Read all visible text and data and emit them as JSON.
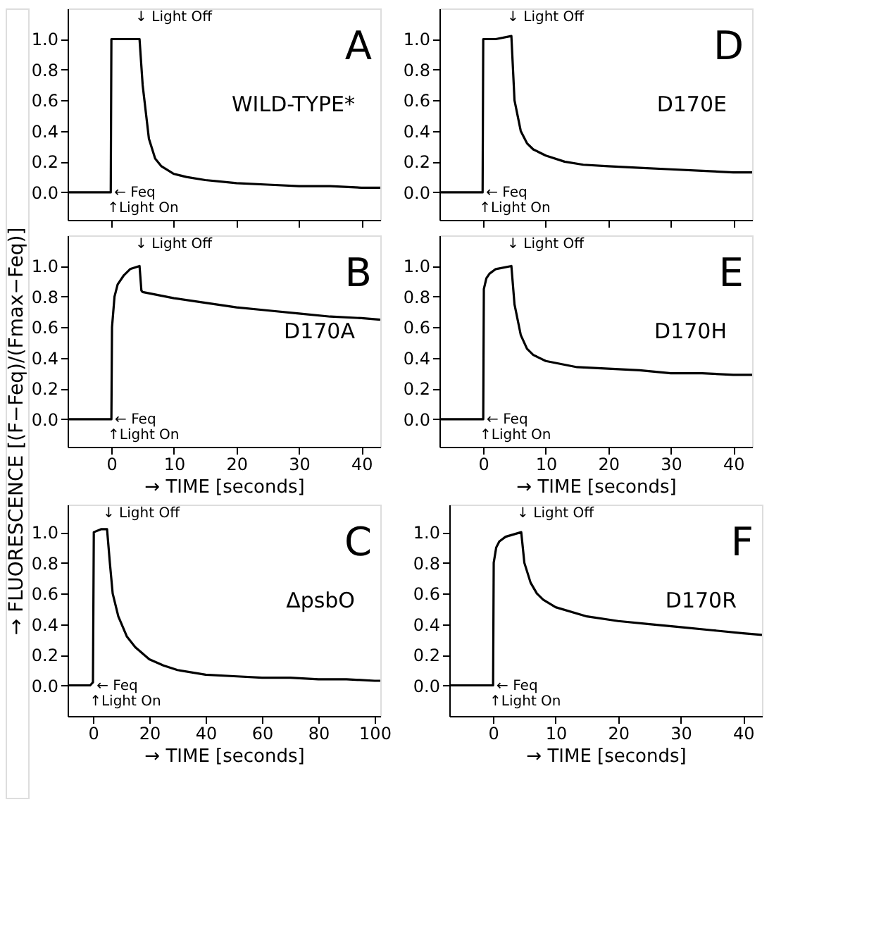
{
  "chart_data": [
    {
      "type": "line",
      "x": [
        -7,
        -3,
        -0.1,
        0,
        2,
        4.5,
        5,
        6,
        7,
        8,
        10,
        12,
        15,
        20,
        25,
        30,
        35,
        40,
        43
      ],
      "values": [
        0,
        0,
        0,
        1.0,
        1.0,
        1.0,
        0.7,
        0.35,
        0.22,
        0.17,
        0.12,
        0.1,
        0.08,
        0.06,
        0.05,
        0.04,
        0.04,
        0.03,
        0.03
      ],
      "color": "#000000",
      "xlim": [
        -7,
        43
      ],
      "ylim": [
        -0.18,
        1.2
      ],
      "xticks": [
        0,
        10,
        20,
        30,
        40
      ],
      "yticks": [
        {
          "value": 0,
          "label": "0.0"
        },
        {
          "value": 0.2,
          "label": "0.2"
        },
        {
          "value": 0.4,
          "label": "0.4"
        },
        {
          "value": 0.6,
          "label": "0.6"
        },
        {
          "value": 0.8,
          "label": "0.8"
        },
        {
          "value": 1,
          "label": "1.0"
        }
      ],
      "tick_labels": "y",
      "grid": false,
      "annotations": [
        "A",
        "WILD-TYPE*",
        "↓ Light Off",
        "← Feq",
        "↑Light On"
      ]
    },
    {
      "type": "line",
      "x": [
        -7,
        -3,
        -0.1,
        0,
        2,
        4.5,
        5,
        6,
        7,
        8,
        10,
        13,
        16,
        20,
        25,
        30,
        35,
        40,
        43
      ],
      "values": [
        0,
        0,
        0,
        1.0,
        1.0,
        1.02,
        0.6,
        0.4,
        0.32,
        0.28,
        0.24,
        0.2,
        0.18,
        0.17,
        0.16,
        0.15,
        0.14,
        0.13,
        0.13
      ],
      "color": "#000000",
      "xlim": [
        -7,
        43
      ],
      "ylim": [
        -0.18,
        1.2
      ],
      "xticks": [
        0,
        10,
        20,
        30,
        40
      ],
      "yticks": [
        {
          "value": 0,
          "label": "0.0"
        },
        {
          "value": 0.2,
          "label": "0.2"
        },
        {
          "value": 0.4,
          "label": "0.4"
        },
        {
          "value": 0.6,
          "label": "0.6"
        },
        {
          "value": 0.8,
          "label": "0.8"
        },
        {
          "value": 1,
          "label": "1.0"
        }
      ],
      "tick_labels": "y",
      "grid": false,
      "annotations": [
        "D",
        "D170E",
        "↓ Light Off",
        "← Feq",
        "↑Light On"
      ]
    },
    {
      "type": "line",
      "x": [
        -7,
        -3,
        0,
        0.1,
        0.5,
        1,
        2,
        3,
        4.5,
        4.8,
        5,
        10,
        15,
        20,
        25,
        30,
        35,
        40,
        43
      ],
      "values": [
        0,
        0,
        0,
        0.6,
        0.8,
        0.88,
        0.94,
        0.98,
        1.0,
        0.84,
        0.83,
        0.79,
        0.76,
        0.73,
        0.71,
        0.69,
        0.67,
        0.66,
        0.65
      ],
      "color": "#000000",
      "xlim": [
        -7,
        43
      ],
      "ylim": [
        -0.18,
        1.2
      ],
      "xticks": [
        0,
        10,
        20,
        30,
        40
      ],
      "yticks": [
        {
          "value": 0,
          "label": "0.0"
        },
        {
          "value": 0.2,
          "label": "0.2"
        },
        {
          "value": 0.4,
          "label": "0.4"
        },
        {
          "value": 0.6,
          "label": "0.6"
        },
        {
          "value": 0.8,
          "label": "0.8"
        },
        {
          "value": 1,
          "label": "1.0"
        }
      ],
      "grid": false,
      "xlabel": "→ TIME [seconds]",
      "ylabel": "→ FLUORESCENCE [(F−Feq)/(Fmax−Feq)]",
      "annotations": [
        "B",
        "D170A",
        "↓ Light Off",
        "← Feq",
        "↑Light On"
      ]
    },
    {
      "type": "line",
      "x": [
        -7,
        -3,
        0,
        0.1,
        0.5,
        1,
        2,
        4.5,
        5,
        6,
        7,
        8,
        10,
        15,
        20,
        25,
        30,
        35,
        40,
        43
      ],
      "values": [
        0,
        0,
        0,
        0.85,
        0.92,
        0.95,
        0.98,
        1.0,
        0.75,
        0.55,
        0.46,
        0.42,
        0.38,
        0.34,
        0.33,
        0.32,
        0.3,
        0.3,
        0.29,
        0.29
      ],
      "color": "#000000",
      "xlim": [
        -7,
        43
      ],
      "ylim": [
        -0.18,
        1.2
      ],
      "xticks": [
        0,
        10,
        20,
        30,
        40
      ],
      "yticks": [
        {
          "value": 0,
          "label": "0.0"
        },
        {
          "value": 0.2,
          "label": "0.2"
        },
        {
          "value": 0.4,
          "label": "0.4"
        },
        {
          "value": 0.6,
          "label": "0.6"
        },
        {
          "value": 0.8,
          "label": "0.8"
        },
        {
          "value": 1,
          "label": "1.0"
        }
      ],
      "grid": false,
      "xlabel": "→ TIME [seconds]",
      "annotations": [
        "E",
        "D170H",
        "↓ Light Off",
        "← Feq",
        "↑Light On"
      ]
    },
    {
      "type": "line",
      "x": [
        -9,
        -4,
        -1,
        0,
        0.3,
        3,
        5,
        6,
        7,
        9,
        12,
        15,
        20,
        25,
        30,
        40,
        50,
        60,
        70,
        80,
        90,
        100,
        102
      ],
      "values": [
        0,
        0,
        0,
        0.02,
        1.0,
        1.02,
        1.02,
        0.8,
        0.6,
        0.45,
        0.32,
        0.25,
        0.17,
        0.13,
        0.1,
        0.07,
        0.06,
        0.05,
        0.05,
        0.04,
        0.04,
        0.03,
        0.03
      ],
      "color": "#000000",
      "xlim": [
        -9,
        102
      ],
      "ylim": [
        -0.2,
        1.18
      ],
      "xticks": [
        0,
        20,
        40,
        60,
        80,
        100
      ],
      "yticks": [
        {
          "value": 0,
          "label": "0.0"
        },
        {
          "value": 0.2,
          "label": "0.2"
        },
        {
          "value": 0.4,
          "label": "0.4"
        },
        {
          "value": 0.6,
          "label": "0.6"
        },
        {
          "value": 0.8,
          "label": "0.8"
        },
        {
          "value": 1,
          "label": "1.0"
        }
      ],
      "grid": false,
      "xlabel": "→ TIME [seconds]",
      "annotations": [
        "C",
        "ΔpsbO",
        "↓ Light Off",
        "← Feq",
        "↑Light On"
      ]
    },
    {
      "type": "line",
      "x": [
        -7,
        -3,
        0,
        0.1,
        0.5,
        1,
        2,
        4.5,
        5,
        6,
        7,
        8,
        10,
        15,
        20,
        25,
        30,
        35,
        40,
        43
      ],
      "values": [
        0,
        0,
        0,
        0.8,
        0.9,
        0.94,
        0.97,
        1.0,
        0.8,
        0.67,
        0.6,
        0.56,
        0.51,
        0.45,
        0.42,
        0.4,
        0.38,
        0.36,
        0.34,
        0.33
      ],
      "color": "#000000",
      "xlim": [
        -7,
        43
      ],
      "ylim": [
        -0.2,
        1.18
      ],
      "xticks": [
        0,
        10,
        20,
        30,
        40
      ],
      "yticks": [
        {
          "value": 0,
          "label": "0.0"
        },
        {
          "value": 0.2,
          "label": "0.2"
        },
        {
          "value": 0.4,
          "label": "0.4"
        },
        {
          "value": 0.6,
          "label": "0.6"
        },
        {
          "value": 0.8,
          "label": "0.8"
        },
        {
          "value": 1,
          "label": "1.0"
        }
      ],
      "grid": false,
      "xlabel": "→ TIME [seconds]",
      "annotations": [
        "F",
        "D170R",
        "↓ Light Off",
        "← Feq",
        "↑Light On"
      ]
    }
  ]
}
